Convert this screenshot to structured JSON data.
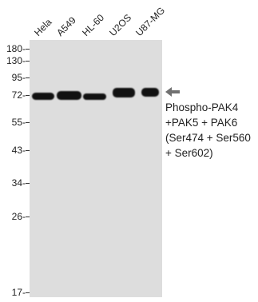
{
  "lanes": [
    "Hela",
    "A549",
    "HL-60",
    "U2OS",
    "U87-MG"
  ],
  "markers": [
    "180-",
    "130-",
    "95-",
    "72-",
    "55-",
    "43-",
    "34-",
    "26-",
    "17-"
  ],
  "target_label": [
    "Phospho-PAK4",
    "+PAK5 + PAK6",
    "(Ser474 + Ser560",
    "+ Ser602)"
  ],
  "colors": {
    "background": "#ffffff",
    "membrane": "#dddddd",
    "band": "#111111",
    "arrow": "#707070",
    "text": "#222222"
  },
  "icons": {
    "band_arrow": "left-arrow-icon"
  }
}
